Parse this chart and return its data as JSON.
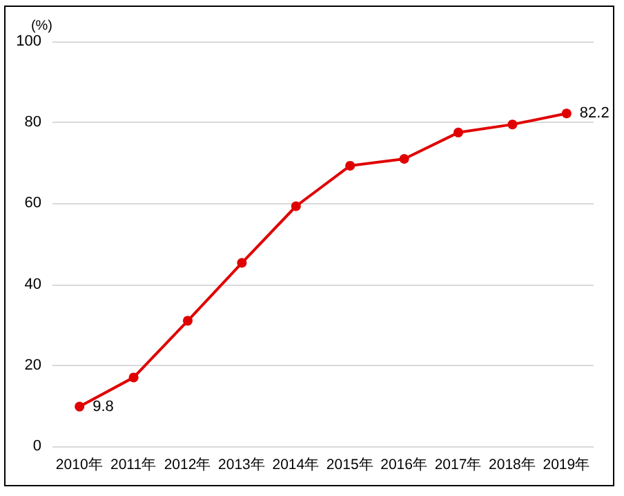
{
  "chart_data": {
    "type": "line",
    "ylabel": "(%)",
    "categories": [
      "2010年",
      "2011年",
      "2012年",
      "2013年",
      "2014年",
      "2015年",
      "2016年",
      "2017年",
      "2018年",
      "2019年"
    ],
    "series": [
      {
        "color": "#e00000",
        "values": [
          9.8,
          17,
          31,
          45.3,
          59.3,
          69.3,
          71,
          77.5,
          79.5,
          82.2
        ],
        "value_labels": [
          "9.8",
          null,
          null,
          null,
          null,
          null,
          null,
          null,
          null,
          "82.2"
        ]
      }
    ],
    "ylim": [
      0,
      100
    ],
    "yticks": [
      0,
      20,
      40,
      60,
      80,
      100
    ],
    "grid": "y",
    "marker": "circle",
    "line_style": "solid"
  }
}
